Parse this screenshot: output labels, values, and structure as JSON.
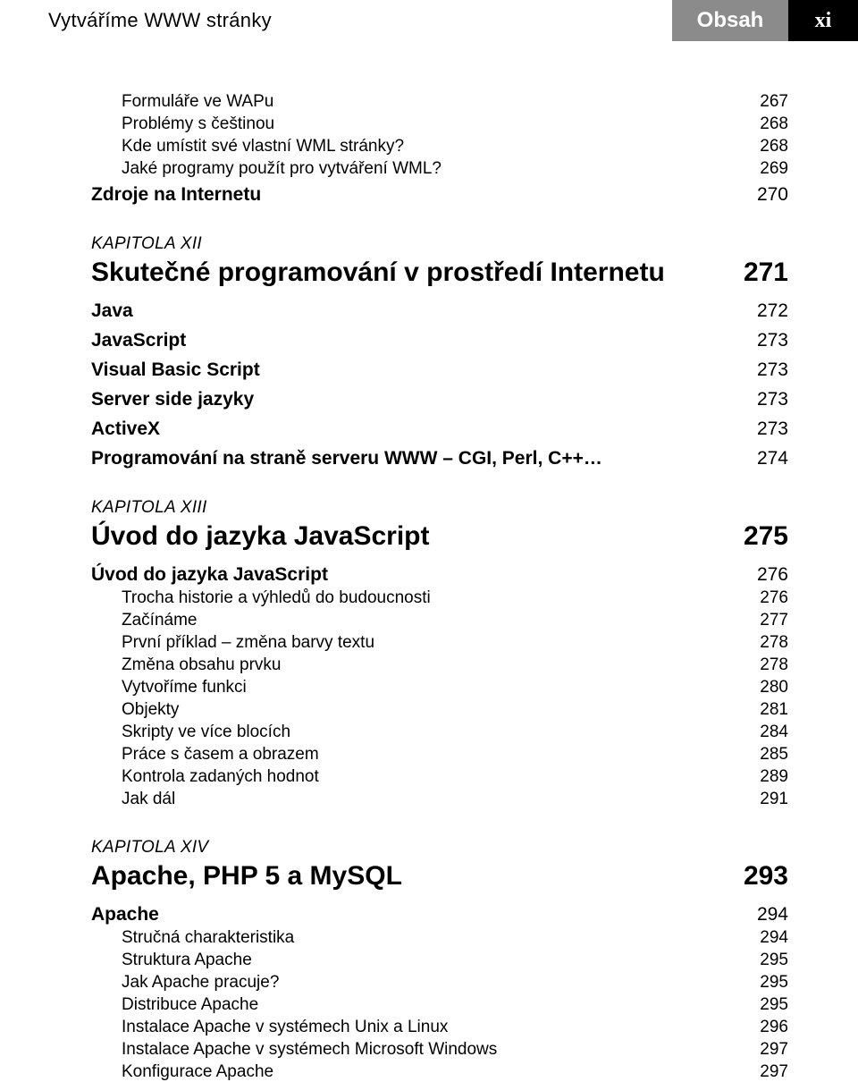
{
  "header": {
    "left": "Vytváříme WWW stránky",
    "mid": "Obsah",
    "right": "xi"
  },
  "block1": {
    "items": [
      {
        "label": "Formuláře ve WAPu",
        "page": "267"
      },
      {
        "label": "Problémy s češtinou",
        "page": "268"
      },
      {
        "label": "Kde umístit své vlastní WML stránky?",
        "page": "268"
      },
      {
        "label": "Jaké programy použít pro vytváření WML?",
        "page": "269"
      }
    ],
    "section": {
      "label": "Zdroje na Internetu",
      "page": "270"
    }
  },
  "ch12": {
    "kapitola": "KAPITOLA XII",
    "title": "Skutečné programování v prostředí Internetu",
    "title_page": "271",
    "sections": [
      {
        "label": "Java",
        "page": "272"
      },
      {
        "label": "JavaScript",
        "page": "273"
      },
      {
        "label": "Visual Basic Script",
        "page": "273"
      },
      {
        "label": "Server side jazyky",
        "page": "273"
      },
      {
        "label": "ActiveX",
        "page": "273"
      },
      {
        "label": "Programování na straně serveru WWW – CGI, Perl, C++…",
        "page": "274"
      }
    ]
  },
  "ch13": {
    "kapitola": "KAPITOLA XIII",
    "title": "Úvod do jazyka JavaScript",
    "title_page": "275",
    "section": {
      "label": "Úvod do jazyka JavaScript",
      "page": "276"
    },
    "items": [
      {
        "label": "Trocha historie a výhledů do budoucnosti",
        "page": "276"
      },
      {
        "label": "Začínáme",
        "page": "277"
      },
      {
        "label": "První příklad – změna barvy textu",
        "page": "278"
      },
      {
        "label": "Změna obsahu prvku",
        "page": "278"
      },
      {
        "label": "Vytvoříme funkci",
        "page": "280"
      },
      {
        "label": "Objekty",
        "page": "281"
      },
      {
        "label": "Skripty ve více blocích",
        "page": "284"
      },
      {
        "label": "Práce s časem a obrazem",
        "page": "285"
      },
      {
        "label": "Kontrola zadaných hodnot",
        "page": "289"
      },
      {
        "label": "Jak dál",
        "page": "291"
      }
    ]
  },
  "ch14": {
    "kapitola": "KAPITOLA XIV",
    "title": "Apache, PHP 5 a MySQL",
    "title_page": "293",
    "section": {
      "label": "Apache",
      "page": "294"
    },
    "items": [
      {
        "label": "Stručná charakteristika",
        "page": "294"
      },
      {
        "label": "Struktura Apache",
        "page": "295"
      },
      {
        "label": "Jak Apache pracuje?",
        "page": "295"
      },
      {
        "label": "Distribuce Apache",
        "page": "295"
      },
      {
        "label": "Instalace Apache v systémech Unix a Linux",
        "page": "296"
      },
      {
        "label": "Instalace Apache v systémech Microsoft Windows",
        "page": "297"
      },
      {
        "label": "Konfigurace Apache",
        "page": "297"
      }
    ]
  }
}
